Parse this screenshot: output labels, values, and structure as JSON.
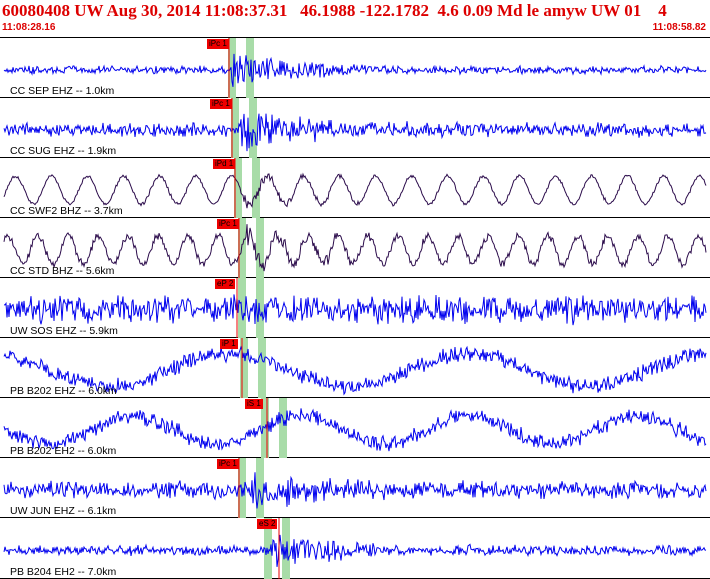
{
  "header": {
    "title": "60080408 UW Aug 30, 2014 11:08:37.31   46.1988 -122.1782  4.6 0.09 Md le amyw UW 01    4",
    "time_start": "11:08:28.16",
    "time_end": "11:08:58.82"
  },
  "colors": {
    "header_text": "#dd0000",
    "trace_blue": "#0000ee",
    "trace_dark": "#2a0a4a",
    "pick_marker": "#ee0000",
    "pick_band": "#a8dca8",
    "synthetic_curve": "#cc0000"
  },
  "stations": [
    {
      "label": "CC SEP EHZ -- 1.0km",
      "pick": "iPc 1",
      "style": "blue"
    },
    {
      "label": "CC SUG EHZ -- 1.9km",
      "pick": "iPc 1",
      "style": "blue"
    },
    {
      "label": "CC SWF2 BHZ -- 3.7km",
      "pick": "iPd 1",
      "style": "dark"
    },
    {
      "label": "CC STD BHZ -- 5.6km",
      "pick": "iPc 1",
      "style": "dark"
    },
    {
      "label": "UW SOS EHZ -- 5.9km",
      "pick": "eP 2",
      "style": "blue"
    },
    {
      "label": "PB B202 EHZ -- 6.0km",
      "pick": "iP 1",
      "style": "blue"
    },
    {
      "label": "PB B202 EH2 -- 6.0km",
      "pick": "iS 1",
      "style": "blue"
    },
    {
      "label": "UW JUN EHZ -- 6.1km",
      "pick": "iPc 1",
      "style": "blue"
    },
    {
      "label": "PB B204 EH2 -- 7.0km",
      "pick": "eS 2",
      "style": "blue"
    }
  ]
}
